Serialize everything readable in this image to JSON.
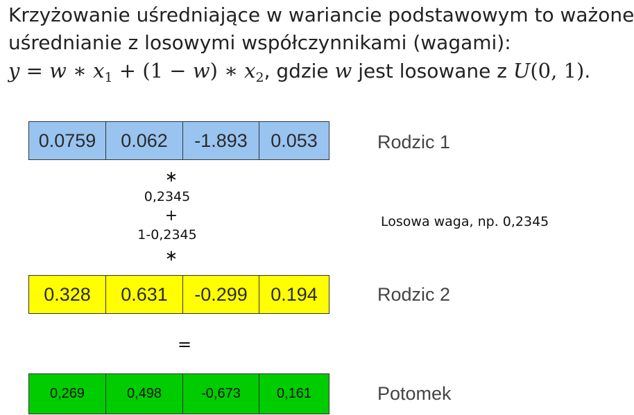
{
  "intro": {
    "line1": "Krzyżowanie uśredniające w wariancie podstawowym to ważone",
    "line2": "uśrednianie z losowymi współczynnikami (wagami):",
    "formula": {
      "y": "y",
      "eq": " = ",
      "w1": "w",
      "star1": " ∗ ",
      "x1": "x",
      "sub1": "1",
      "plus": " + (1 − ",
      "w2": "w",
      "close": ") ∗ ",
      "x2": "x",
      "sub2": "2",
      "comma": ", ",
      "gdzie": "gdzie ",
      "w3": "w",
      "jest": " jest losowane z ",
      "U": "U",
      "args": "(0, 1)",
      "period": "."
    }
  },
  "parent1": {
    "label": "Rodzic 1",
    "genes": [
      "0.0759",
      "0.062",
      "-1.893",
      "0.053"
    ],
    "color": "#99c4f0"
  },
  "operators": {
    "mul1": "∗",
    "weight": "0,2345",
    "plus": "+",
    "complement": "1-0,2345",
    "mul2": "∗",
    "equals": "="
  },
  "weight_note": "Losowa waga, np. 0,2345",
  "parent2": {
    "label": "Rodzic 2",
    "genes": [
      "0.328",
      "0.631",
      "-0.299",
      "0.194"
    ],
    "color": "#ffff00"
  },
  "child": {
    "label": "Potomek",
    "genes": [
      "0,269",
      "0,498",
      "-0,673",
      "0,161"
    ],
    "color": "#00cc00"
  }
}
